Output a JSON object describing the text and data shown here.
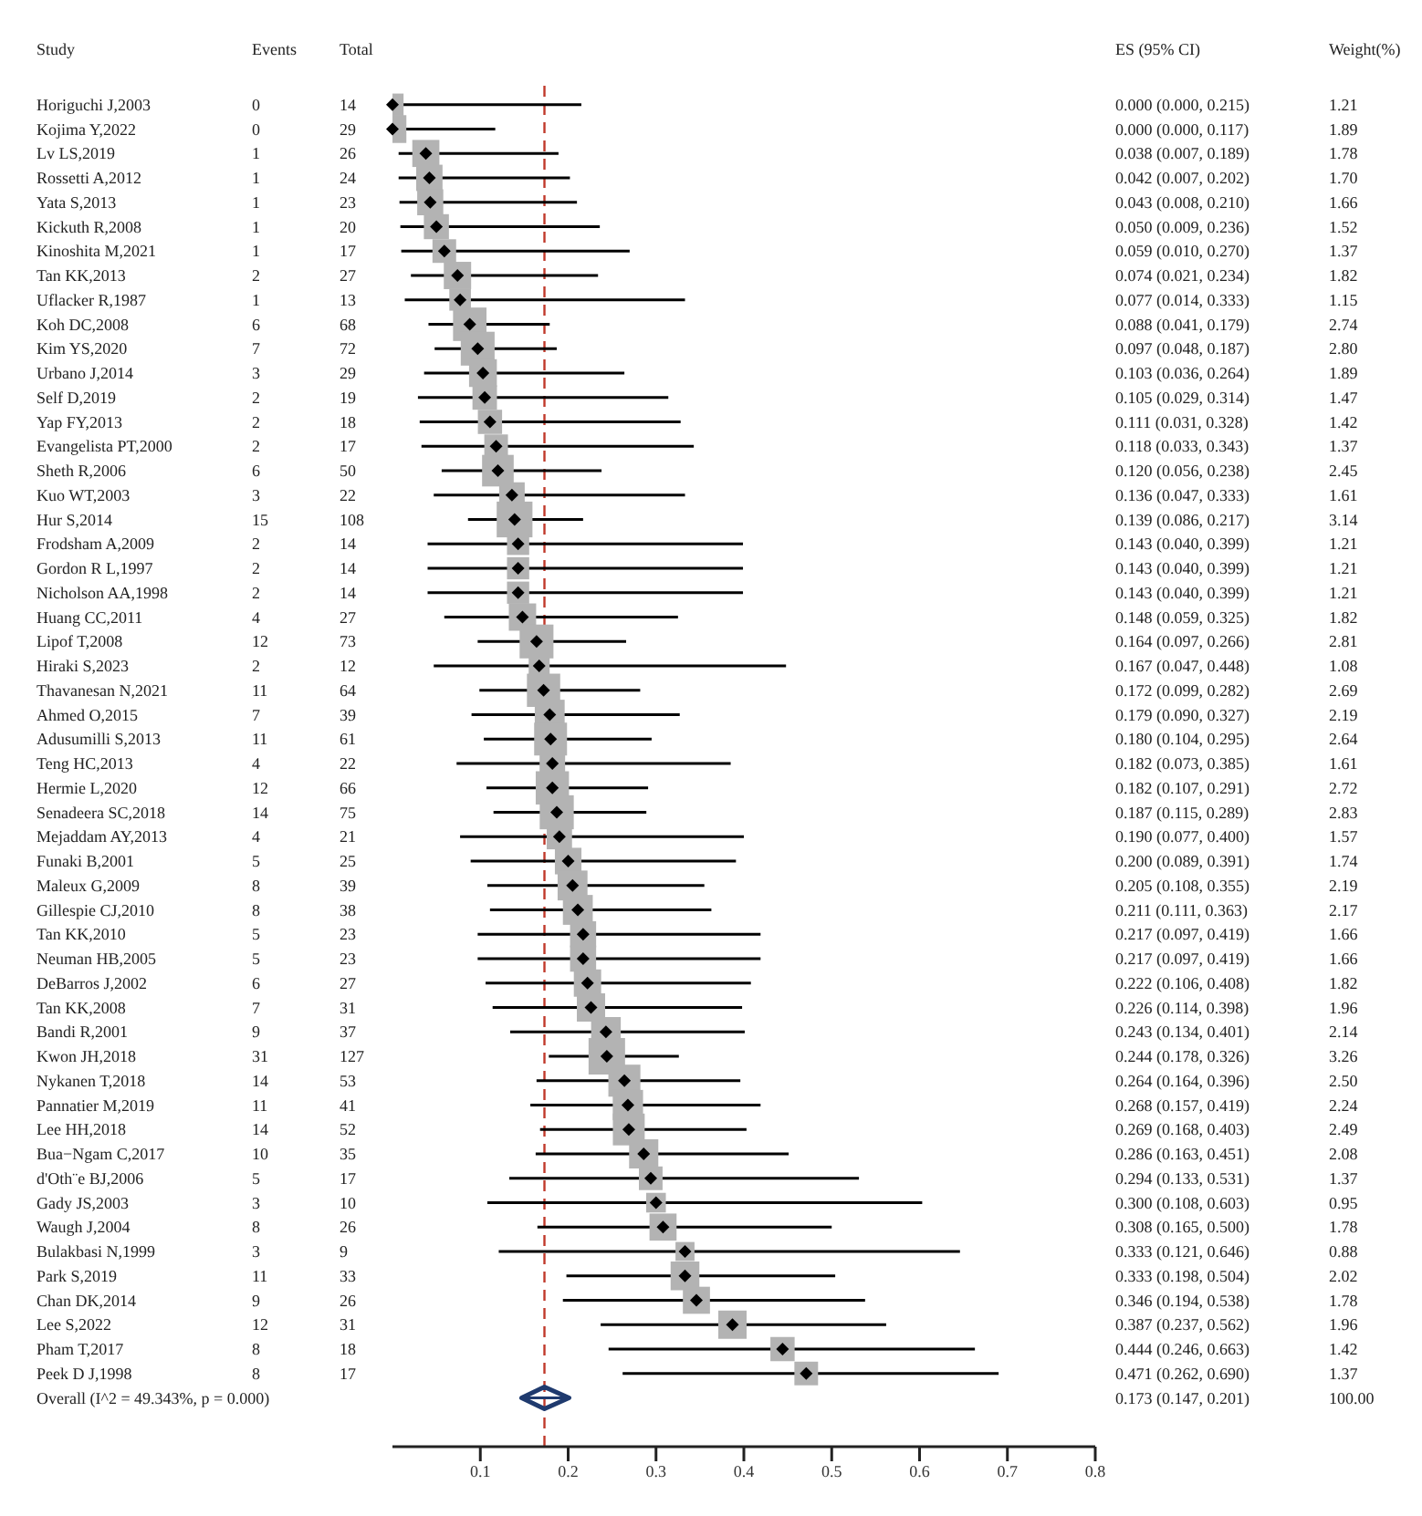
{
  "chart_data": {
    "type": "scatter",
    "orientation": "horizontal",
    "categories": [
      "Horiguchi J,2003",
      "Kojima Y,2022",
      "Lv LS,2019",
      "Rossetti A,2012",
      "Yata S,2013",
      "Kickuth R,2008",
      "Kinoshita M,2021",
      "Tan KK,2013",
      "Uflacker R,1987",
      "Koh DC,2008",
      "Kim YS,2020",
      "Urbano J,2014",
      "Self D,2019",
      "Yap FY,2013",
      "Evangelista PT,2000",
      "Sheth R,2006",
      "Kuo WT,2003",
      "Hur S,2014",
      "Frodsham A,2009",
      "Gordon R L,1997",
      "Nicholson AA,1998",
      "Huang CC,2011",
      "Lipof T,2008",
      "Hiraki S,2023",
      "Thavanesan N,2021",
      "Ahmed O,2015",
      "Adusumilli S,2013",
      "Teng HC,2013",
      "Hermie L,2020",
      "Senadeera SC,2018",
      "Mejaddam AY,2013",
      "Funaki B,2001",
      "Maleux G,2009",
      "Gillespie CJ,2010",
      "Tan KK,2010",
      "Neuman HB,2005",
      "DeBarros J,2002",
      "Tan KK,2008",
      "Bandi R,2001",
      "Kwon JH,2018",
      "Nykanen T,2018",
      "Pannatier M,2019",
      "Lee HH,2018",
      "Bua−Ngam C,2017",
      "d'Oth¨e BJ,2006",
      "Gady JS,2003",
      "Waugh J,2004",
      "Bulakbasi N,1999",
      "Park S,2019",
      "Chan DK,2014",
      "Lee S,2022",
      "Pham T,2017",
      "Peek D J,1998",
      "Overall  (I^2 = 49.343%, p = 0.000)"
    ],
    "series": [
      {
        "marker": "square",
        "color": "#b3b3b3",
        "values": [
          0.0,
          0.0,
          0.038,
          0.042,
          0.043,
          0.05,
          0.059,
          0.074,
          0.077,
          0.088,
          0.097,
          0.103,
          0.105,
          0.111,
          0.118,
          0.12,
          0.136,
          0.139,
          0.143,
          0.143,
          0.143,
          0.148,
          0.164,
          0.167,
          0.172,
          0.179,
          0.18,
          0.182,
          0.182,
          0.187,
          0.19,
          0.2,
          0.205,
          0.211,
          0.217,
          0.217,
          0.222,
          0.226,
          0.243,
          0.244,
          0.264,
          0.268,
          0.269,
          0.286,
          0.294,
          0.3,
          0.308,
          0.333,
          0.333,
          0.346,
          0.387,
          0.444,
          0.471,
          null
        ],
        "errors": [
          [
            0.0,
            0.215
          ],
          [
            0.0,
            0.117
          ],
          [
            0.007,
            0.189
          ],
          [
            0.007,
            0.202
          ],
          [
            0.008,
            0.21
          ],
          [
            0.009,
            0.236
          ],
          [
            0.01,
            0.27
          ],
          [
            0.021,
            0.234
          ],
          [
            0.014,
            0.333
          ],
          [
            0.041,
            0.179
          ],
          [
            0.048,
            0.187
          ],
          [
            0.036,
            0.264
          ],
          [
            0.029,
            0.314
          ],
          [
            0.031,
            0.328
          ],
          [
            0.033,
            0.343
          ],
          [
            0.056,
            0.238
          ],
          [
            0.047,
            0.333
          ],
          [
            0.086,
            0.217
          ],
          [
            0.04,
            0.399
          ],
          [
            0.04,
            0.399
          ],
          [
            0.04,
            0.399
          ],
          [
            0.059,
            0.325
          ],
          [
            0.097,
            0.266
          ],
          [
            0.047,
            0.448
          ],
          [
            0.099,
            0.282
          ],
          [
            0.09,
            0.327
          ],
          [
            0.104,
            0.295
          ],
          [
            0.073,
            0.385
          ],
          [
            0.107,
            0.291
          ],
          [
            0.115,
            0.289
          ],
          [
            0.077,
            0.4
          ],
          [
            0.089,
            0.391
          ],
          [
            0.108,
            0.355
          ],
          [
            0.111,
            0.363
          ],
          [
            0.097,
            0.419
          ],
          [
            0.097,
            0.419
          ],
          [
            0.106,
            0.408
          ],
          [
            0.114,
            0.398
          ],
          [
            0.134,
            0.401
          ],
          [
            0.178,
            0.326
          ],
          [
            0.164,
            0.396
          ],
          [
            0.157,
            0.419
          ],
          [
            0.168,
            0.403
          ],
          [
            0.163,
            0.451
          ],
          [
            0.133,
            0.531
          ],
          [
            0.108,
            0.603
          ],
          [
            0.165,
            0.5
          ],
          [
            0.121,
            0.646
          ],
          [
            0.198,
            0.504
          ],
          [
            0.194,
            0.538
          ],
          [
            0.237,
            0.562
          ],
          [
            0.246,
            0.663
          ],
          [
            0.262,
            0.69
          ],
          null
        ],
        "sizes": [
          0.37,
          0.58,
          0.55,
          0.52,
          0.51,
          0.47,
          0.42,
          0.56,
          0.35,
          0.84,
          0.86,
          0.58,
          0.45,
          0.44,
          0.42,
          0.75,
          0.49,
          0.96,
          0.37,
          0.37,
          0.37,
          0.56,
          0.86,
          0.33,
          0.83,
          0.67,
          0.81,
          0.49,
          0.83,
          0.87,
          0.48,
          0.53,
          0.67,
          0.67,
          0.51,
          0.51,
          0.56,
          0.6,
          0.66,
          1,
          0.77,
          0.69,
          0.76,
          0.64,
          0.42,
          0.29,
          0.55,
          0.27,
          0.62,
          0.55,
          0.6,
          0.44,
          0.42,
          null
        ],
        "value_labels": [
          "0.000 (0.000, 0.215)",
          "0.000 (0.000, 0.117)",
          "0.038 (0.007, 0.189)",
          "0.042 (0.007, 0.202)",
          "0.043 (0.008, 0.210)",
          "0.050 (0.009, 0.236)",
          "0.059 (0.010, 0.270)",
          "0.074 (0.021, 0.234)",
          "0.077 (0.014, 0.333)",
          "0.088 (0.041, 0.179)",
          "0.097 (0.048, 0.187)",
          "0.103 (0.036, 0.264)",
          "0.105 (0.029, 0.314)",
          "0.111 (0.031, 0.328)",
          "0.118 (0.033, 0.343)",
          "0.120 (0.056, 0.238)",
          "0.136 (0.047, 0.333)",
          "0.139 (0.086, 0.217)",
          "0.143 (0.040, 0.399)",
          "0.143 (0.040, 0.399)",
          "0.143 (0.040, 0.399)",
          "0.148 (0.059, 0.325)",
          "0.164 (0.097, 0.266)",
          "0.167 (0.047, 0.448)",
          "0.172 (0.099, 0.282)",
          "0.179 (0.090, 0.327)",
          "0.180 (0.104, 0.295)",
          "0.182 (0.073, 0.385)",
          "0.182 (0.107, 0.291)",
          "0.187 (0.115, 0.289)",
          "0.190 (0.077, 0.400)",
          "0.200 (0.089, 0.391)",
          "0.205 (0.108, 0.355)",
          "0.211 (0.111, 0.363)",
          "0.217 (0.097, 0.419)",
          "0.217 (0.097, 0.419)",
          "0.222 (0.106, 0.408)",
          "0.226 (0.114, 0.398)",
          "0.243 (0.134, 0.401)",
          "0.244 (0.178, 0.326)",
          "0.264 (0.164, 0.396)",
          "0.268 (0.157, 0.419)",
          "0.269 (0.168, 0.403)",
          "0.286 (0.163, 0.451)",
          "0.294 (0.133, 0.531)",
          "0.300 (0.108, 0.603)",
          "0.308 (0.165, 0.500)",
          "0.333 (0.121, 0.646)",
          "0.333 (0.198, 0.504)",
          "0.346 (0.194, 0.538)",
          "0.387 (0.237, 0.562)",
          "0.444 (0.246, 0.663)",
          "0.471 (0.262, 0.690)",
          null
        ]
      },
      {
        "marker": "diamond",
        "color": "#1f3a6e",
        "values": [
          null,
          null,
          null,
          null,
          null,
          null,
          null,
          null,
          null,
          null,
          null,
          null,
          null,
          null,
          null,
          null,
          null,
          null,
          null,
          null,
          null,
          null,
          null,
          null,
          null,
          null,
          null,
          null,
          null,
          null,
          null,
          null,
          null,
          null,
          null,
          null,
          null,
          null,
          null,
          null,
          null,
          null,
          null,
          null,
          null,
          null,
          null,
          null,
          null,
          null,
          null,
          null,
          null,
          0.173
        ],
        "errors": [
          null,
          null,
          null,
          null,
          null,
          null,
          null,
          null,
          null,
          null,
          null,
          null,
          null,
          null,
          null,
          null,
          null,
          null,
          null,
          null,
          null,
          null,
          null,
          null,
          null,
          null,
          null,
          null,
          null,
          null,
          null,
          null,
          null,
          null,
          null,
          null,
          null,
          null,
          null,
          null,
          null,
          null,
          null,
          null,
          null,
          null,
          null,
          null,
          null,
          null,
          null,
          null,
          null,
          [
            0.147,
            0.201
          ]
        ]
      }
    ],
    "xlim": [
      0,
      0.8
    ],
    "xticks": [
      0.1,
      0.2,
      0.3,
      0.4,
      0.5,
      0.6,
      0.7,
      0.8
    ],
    "ref_lines": [
      {
        "axis": "x",
        "value": 0.173,
        "color": "#c0392b",
        "line_style": "dashed"
      }
    ],
    "annotations": [
      "Study",
      "Events",
      "Total",
      "ES (95% CI)",
      "Weight(%)",
      "0",
      "14",
      "1.21",
      "0",
      "29",
      "1.89",
      "1",
      "26",
      "1.78",
      "1",
      "24",
      "1.70",
      "1",
      "23",
      "1.66",
      "1",
      "20",
      "1.52",
      "1",
      "17",
      "1.37",
      "2",
      "27",
      "1.82",
      "1",
      "13",
      "1.15",
      "6",
      "68",
      "2.74",
      "7",
      "72",
      "2.80",
      "3",
      "29",
      "1.89",
      "2",
      "19",
      "1.47",
      "2",
      "18",
      "1.42",
      "2",
      "17",
      "1.37",
      "6",
      "50",
      "2.45",
      "3",
      "22",
      "1.61",
      "15",
      "108",
      "3.14",
      "2",
      "14",
      "1.21",
      "2",
      "14",
      "1.21",
      "2",
      "14",
      "1.21",
      "4",
      "27",
      "1.82",
      "12",
      "73",
      "2.81",
      "2",
      "12",
      "1.08",
      "11",
      "64",
      "2.69",
      "7",
      "39",
      "2.19",
      "11",
      "61",
      "2.64",
      "4",
      "22",
      "1.61",
      "12",
      "66",
      "2.72",
      "14",
      "75",
      "2.83",
      "4",
      "21",
      "1.57",
      "5",
      "25",
      "1.74",
      "8",
      "39",
      "2.19",
      "8",
      "38",
      "2.17",
      "5",
      "23",
      "1.66",
      "5",
      "23",
      "1.66",
      "6",
      "27",
      "1.82",
      "7",
      "31",
      "1.96",
      "9",
      "37",
      "2.14",
      "31",
      "127",
      "3.26",
      "14",
      "53",
      "2.50",
      "11",
      "41",
      "2.24",
      "14",
      "52",
      "2.49",
      "10",
      "35",
      "2.08",
      "5",
      "17",
      "1.37",
      "3",
      "10",
      "0.95",
      "8",
      "26",
      "1.78",
      "3",
      "9",
      "0.88",
      "11",
      "33",
      "2.02",
      "9",
      "26",
      "1.78",
      "12",
      "31",
      "1.96",
      "8",
      "18",
      "1.42",
      "8",
      "17",
      "1.37",
      "0.173 (0.147, 0.201)",
      "100.00"
    ]
  }
}
